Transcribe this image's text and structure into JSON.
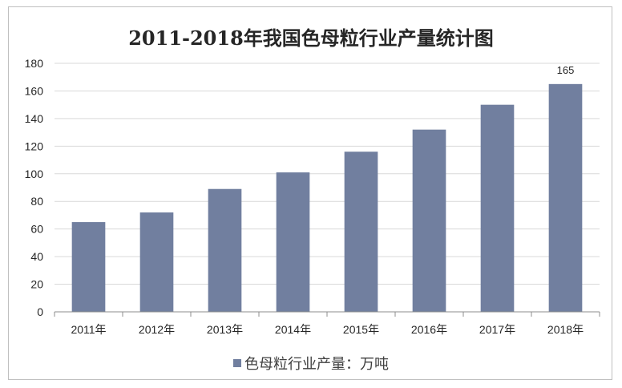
{
  "chart_data": {
    "type": "bar",
    "title": "2011-2018年我国色母粒行业产量统计图",
    "categories": [
      "2011年",
      "2012年",
      "2013年",
      "2014年",
      "2015年",
      "2016年",
      "2017年",
      "2018年"
    ],
    "series": [
      {
        "name": "色母粒行业产量：万吨",
        "values": [
          65,
          72,
          89,
          101,
          116,
          132,
          150,
          165
        ],
        "color": "#717f9f"
      }
    ],
    "data_labels": [
      {
        "index": 7,
        "text": "165"
      }
    ],
    "ylim": [
      0,
      180
    ],
    "yticks": [
      0,
      20,
      40,
      60,
      80,
      100,
      120,
      140,
      160,
      180
    ],
    "xlabel": "",
    "ylabel": "",
    "grid": true,
    "legend_position": "bottom",
    "colors": {
      "bar": "#717f9f",
      "grid": "#d9d9d9",
      "axis": "#8c8c8c",
      "text": "#262626"
    }
  }
}
